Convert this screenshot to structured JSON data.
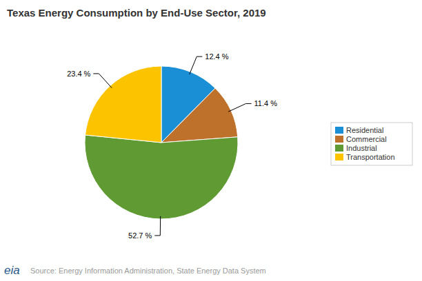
{
  "chart_data": {
    "type": "pie",
    "title": "Texas Energy Consumption by End-Use Sector, 2019",
    "categories": [
      "Residential",
      "Commercial",
      "Industrial",
      "Transportation"
    ],
    "values": [
      12.4,
      11.4,
      52.7,
      23.4
    ],
    "value_labels": [
      "12.4 %",
      "11.4 %",
      "52.7 %",
      "23.4 %"
    ],
    "colors": [
      "#1a8fd5",
      "#bd712b",
      "#5f9a33",
      "#fcc400"
    ],
    "data_labels": true,
    "legend": "right",
    "source": "Source: Energy Information Administration, State Energy Data System",
    "logo": "eia"
  }
}
